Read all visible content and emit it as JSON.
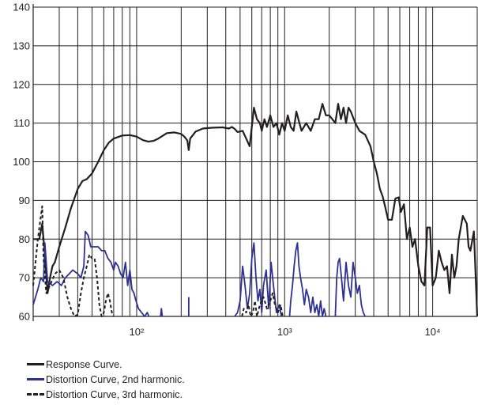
{
  "chart_data": {
    "type": "line",
    "x_scale": "log",
    "xlim": [
      20,
      20000
    ],
    "ylim": [
      60,
      140
    ],
    "grid": true,
    "x_ticks": [
      {
        "value": 100,
        "label": "10²"
      },
      {
        "value": 1000,
        "label": "10³"
      },
      {
        "value": 10000,
        "label": "10⁴"
      }
    ],
    "y_ticks": [
      {
        "value": 60,
        "label": "60"
      },
      {
        "value": 70,
        "label": "70"
      },
      {
        "value": 80,
        "label": "80"
      },
      {
        "value": 90,
        "label": "90"
      },
      {
        "value": 100,
        "label": "100"
      },
      {
        "value": 110,
        "label": "110"
      },
      {
        "value": 120,
        "label": "120"
      },
      {
        "value": 130,
        "label": "130"
      },
      {
        "value": 140,
        "label": "140"
      }
    ],
    "legend_position": "bottom-left",
    "series": [
      {
        "name": "Response Curve.",
        "color": "#231f20",
        "style": "solid",
        "points": [
          [
            20,
            80
          ],
          [
            22,
            80
          ],
          [
            23,
            84
          ],
          [
            24,
            76
          ],
          [
            25,
            66
          ],
          [
            26,
            70
          ],
          [
            27,
            73
          ],
          [
            28,
            74
          ],
          [
            30,
            78
          ],
          [
            33,
            83
          ],
          [
            36,
            88
          ],
          [
            40,
            93
          ],
          [
            43,
            95
          ],
          [
            46,
            95.5
          ],
          [
            50,
            97
          ],
          [
            55,
            100
          ],
          [
            60,
            103
          ],
          [
            65,
            105
          ],
          [
            70,
            106
          ],
          [
            80,
            106.8
          ],
          [
            90,
            106.9
          ],
          [
            100,
            106.5
          ],
          [
            110,
            105.6
          ],
          [
            120,
            105.2
          ],
          [
            130,
            105.4
          ],
          [
            140,
            106
          ],
          [
            160,
            107.4
          ],
          [
            180,
            107.6
          ],
          [
            200,
            107.2
          ],
          [
            210,
            106.5
          ],
          [
            220,
            105.5
          ],
          [
            225,
            103
          ],
          [
            230,
            106
          ],
          [
            250,
            107.8
          ],
          [
            280,
            108.6
          ],
          [
            320,
            108.8
          ],
          [
            380,
            108.9
          ],
          [
            420,
            108.6
          ],
          [
            440,
            109
          ],
          [
            460,
            108.5
          ],
          [
            480,
            107.7
          ],
          [
            520,
            108
          ],
          [
            550,
            106
          ],
          [
            580,
            104
          ],
          [
            600,
            109
          ],
          [
            620,
            114
          ],
          [
            650,
            111
          ],
          [
            680,
            110
          ],
          [
            700,
            108
          ],
          [
            730,
            111
          ],
          [
            760,
            109
          ],
          [
            800,
            112
          ],
          [
            840,
            109
          ],
          [
            880,
            110
          ],
          [
            920,
            107
          ],
          [
            960,
            110
          ],
          [
            1000,
            108
          ],
          [
            1050,
            112
          ],
          [
            1100,
            109
          ],
          [
            1150,
            108
          ],
          [
            1200,
            113
          ],
          [
            1300,
            108
          ],
          [
            1400,
            110
          ],
          [
            1500,
            108
          ],
          [
            1600,
            111
          ],
          [
            1700,
            111
          ],
          [
            1800,
            115
          ],
          [
            1900,
            112
          ],
          [
            2000,
            112
          ],
          [
            2100,
            111
          ],
          [
            2200,
            110
          ],
          [
            2300,
            115
          ],
          [
            2400,
            111
          ],
          [
            2500,
            114
          ],
          [
            2600,
            110
          ],
          [
            2700,
            114
          ],
          [
            2800,
            113
          ],
          [
            3000,
            110
          ],
          [
            3200,
            108
          ],
          [
            3500,
            107
          ],
          [
            3800,
            104
          ],
          [
            4000,
            100
          ],
          [
            4200,
            97
          ],
          [
            4400,
            93
          ],
          [
            4600,
            91
          ],
          [
            4800,
            88
          ],
          [
            5000,
            85
          ],
          [
            5300,
            85
          ],
          [
            5600,
            90.5
          ],
          [
            5900,
            90.8
          ],
          [
            6100,
            87
          ],
          [
            6400,
            89
          ],
          [
            6700,
            80
          ],
          [
            7000,
            83
          ],
          [
            7300,
            78
          ],
          [
            7600,
            80
          ],
          [
            8000,
            73
          ],
          [
            8400,
            69
          ],
          [
            8800,
            68
          ],
          [
            9200,
            83
          ],
          [
            9600,
            83
          ],
          [
            10000,
            68
          ],
          [
            10500,
            70
          ],
          [
            11000,
            77
          ],
          [
            11500,
            74
          ],
          [
            12000,
            72
          ],
          [
            12500,
            73
          ],
          [
            13000,
            66
          ],
          [
            13500,
            76
          ],
          [
            14000,
            70
          ],
          [
            14500,
            73
          ],
          [
            15000,
            80
          ],
          [
            16000,
            86
          ],
          [
            17000,
            84
          ],
          [
            17500,
            78
          ],
          [
            18000,
            77
          ],
          [
            19000,
            82
          ],
          [
            20000,
            60
          ]
        ]
      },
      {
        "name": "Distortion Curve, 2nd harmonic.",
        "color": "#2e3192",
        "style": "solid",
        "segments": [
          [
            [
              20,
              63
            ],
            [
              21.5,
              67
            ],
            [
              22.5,
              70
            ],
            [
              23.5,
              69
            ],
            [
              24,
              79
            ],
            [
              25,
              69
            ],
            [
              27,
              68
            ],
            [
              29,
              69
            ],
            [
              31,
              68
            ],
            [
              33,
              70
            ],
            [
              35,
              71
            ],
            [
              37,
              72
            ],
            [
              40,
              71
            ],
            [
              42,
              70
            ],
            [
              44,
              73
            ],
            [
              45,
              82
            ],
            [
              47,
              81
            ],
            [
              49,
              78
            ],
            [
              52,
              78
            ],
            [
              55,
              78
            ],
            [
              58,
              77
            ],
            [
              61,
              77
            ],
            [
              64,
              75
            ],
            [
              67,
              74
            ],
            [
              70,
              72
            ],
            [
              72,
              74
            ],
            [
              75,
              73
            ],
            [
              78,
              71
            ],
            [
              81,
              70
            ],
            [
              84,
              74
            ],
            [
              87,
              68
            ],
            [
              90,
              72
            ],
            [
              93,
              67
            ],
            [
              96,
              66
            ],
            [
              99,
              64
            ],
            [
              103,
              62
            ],
            [
              108,
              61
            ],
            [
              113,
              60
            ],
            [
              118,
              61
            ],
            [
              121,
              60
            ]
          ],
          [
            [
              145,
              60
            ],
            [
              147,
              62
            ],
            [
              149,
              60
            ]
          ],
          [
            [
              225,
              60
            ],
            [
              225,
              65
            ]
          ],
          [
            [
              460,
              60
            ],
            [
              480,
              61
            ],
            [
              500,
              64
            ],
            [
              520,
              73
            ],
            [
              540,
              68
            ],
            [
              560,
              62
            ],
            [
              580,
              66
            ],
            [
              600,
              75
            ],
            [
              620,
              79
            ],
            [
              640,
              70
            ],
            [
              660,
              64
            ],
            [
              680,
              67
            ],
            [
              700,
              61
            ],
            [
              720,
              68
            ],
            [
              750,
              72
            ],
            [
              780,
              62
            ],
            [
              810,
              74
            ],
            [
              840,
              68
            ],
            [
              880,
              61
            ],
            [
              920,
              63
            ],
            [
              950,
              60
            ]
          ],
          [
            [
              1080,
              60
            ],
            [
              1100,
              64
            ],
            [
              1130,
              68
            ],
            [
              1160,
              73
            ],
            [
              1190,
              77
            ],
            [
              1220,
              79
            ],
            [
              1250,
              73
            ],
            [
              1280,
              70
            ],
            [
              1320,
              67
            ],
            [
              1360,
              63
            ],
            [
              1400,
              67
            ],
            [
              1450,
              65
            ],
            [
              1500,
              61
            ],
            [
              1550,
              65
            ],
            [
              1600,
              61
            ],
            [
              1650,
              63
            ],
            [
              1700,
              60
            ],
            [
              1750,
              64
            ],
            [
              1800,
              60
            ],
            [
              1850,
              62
            ],
            [
              1900,
              60
            ]
          ],
          [
            [
              2200,
              60
            ],
            [
              2250,
              70
            ],
            [
              2300,
              74
            ],
            [
              2350,
              75
            ],
            [
              2420,
              70
            ],
            [
              2500,
              64
            ],
            [
              2600,
              74
            ],
            [
              2700,
              68
            ],
            [
              2800,
              65
            ],
            [
              2900,
              74
            ],
            [
              3000,
              70
            ],
            [
              3100,
              66
            ],
            [
              3200,
              68
            ],
            [
              3300,
              63
            ],
            [
              3400,
              61
            ],
            [
              3500,
              60
            ]
          ]
        ]
      },
      {
        "name": "Distortion Curve, 3rd harmonic.",
        "color": "#231f20",
        "style": "dashed",
        "segments": [
          [
            [
              20,
              68
            ],
            [
              21.5,
              80
            ],
            [
              23,
              88.5
            ],
            [
              23.5,
              75
            ],
            [
              24.5,
              66
            ],
            [
              26,
              68
            ],
            [
              28,
              71
            ],
            [
              30,
              72
            ],
            [
              32,
              70
            ],
            [
              34,
              65
            ],
            [
              36,
              62
            ],
            [
              38,
              60
            ],
            [
              40,
              60.5
            ],
            [
              42,
              66
            ],
            [
              44,
              70
            ],
            [
              46,
              73
            ],
            [
              48,
              76
            ],
            [
              50,
              75
            ],
            [
              52,
              75
            ],
            [
              54,
              70
            ],
            [
              56,
              63
            ],
            [
              58,
              60
            ],
            [
              60,
              61
            ],
            [
              62,
              64
            ],
            [
              64,
              66
            ],
            [
              66,
              64
            ],
            [
              68,
              61
            ],
            [
              70,
              60
            ]
          ],
          [
            [
              515,
              60
            ],
            [
              530,
              62
            ],
            [
              550,
              61
            ],
            [
              570,
              63
            ],
            [
              590,
              60
            ],
            [
              610,
              61
            ],
            [
              630,
              64
            ],
            [
              650,
              60
            ],
            [
              680,
              63
            ],
            [
              720,
              65
            ],
            [
              760,
              62
            ],
            [
              800,
              64
            ],
            [
              830,
              66
            ],
            [
              860,
              63
            ],
            [
              900,
              61
            ],
            [
              940,
              63
            ],
            [
              970,
              60
            ]
          ]
        ]
      }
    ]
  }
}
